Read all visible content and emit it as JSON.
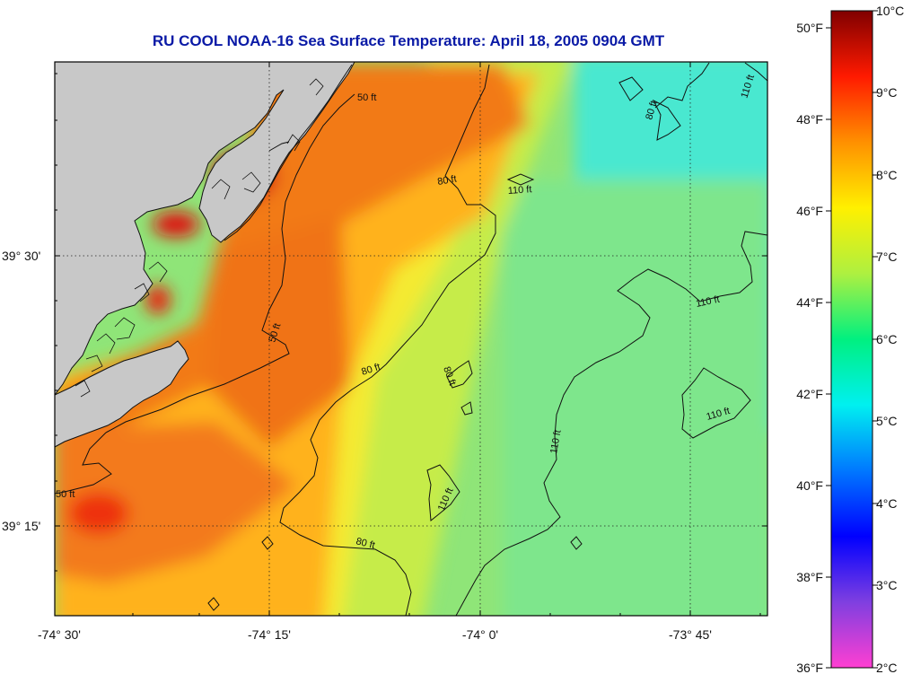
{
  "title": "RU COOL  NOAA-16  Sea Surface Temperature:  April 18, 2005 0904 GMT",
  "x_ticks": [
    "-74° 30'",
    "-74° 15'",
    "-74° 0'",
    "-73° 45'"
  ],
  "y_ticks": [
    "39° 30'",
    "39° 15'"
  ],
  "contours": [
    {
      "label": "50 ft"
    },
    {
      "label": "50 ft"
    },
    {
      "label": "50 ft"
    },
    {
      "label": "80 ft"
    },
    {
      "label": "80 ft"
    },
    {
      "label": "80 ft"
    },
    {
      "label": "80 ft"
    },
    {
      "label": "80 ft"
    },
    {
      "label": "110 ft"
    },
    {
      "label": "110 ft"
    },
    {
      "label": "110 ft"
    },
    {
      "label": "110 ft"
    },
    {
      "label": "110 ft"
    },
    {
      "label": "110 ft"
    }
  ],
  "colorbar": {
    "fahrenheit": [
      "50°F",
      "48°F",
      "46°F",
      "44°F",
      "42°F",
      "40°F",
      "38°F",
      "36°F"
    ],
    "celsius": [
      "10°C",
      "9°C",
      "8°C",
      "7°C",
      "6°C",
      "5°C",
      "4°C",
      "3°C",
      "2°C"
    ],
    "stops": [
      "#ff3fd2",
      "#7f3fe0",
      "#0000ff",
      "#0078ff",
      "#00f0f0",
      "#00f080",
      "#aef040",
      "#fff000",
      "#ff9000",
      "#ff1a00",
      "#800000"
    ]
  },
  "colors": {
    "land": "#c8c8c8",
    "warm": "#f07818",
    "hot": "#d80a10",
    "orange_yellow": "#ffb020",
    "yellow": "#f2ea30",
    "lime": "#c8ec48",
    "green": "#8ae878",
    "aqua": "#40ecd8"
  }
}
